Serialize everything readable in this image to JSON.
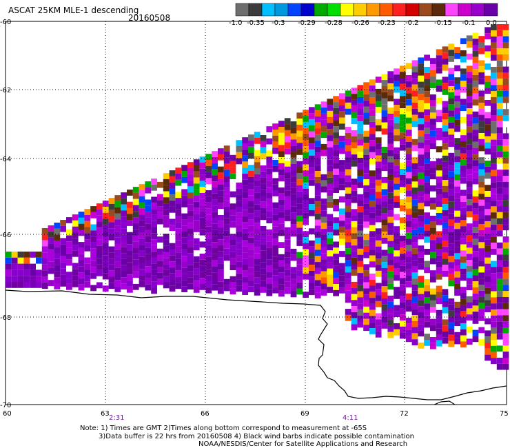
{
  "title": "ASCAT 25KM MLE-1 descending",
  "date": "20160508",
  "colorbar": {
    "labels": [
      "-1.0",
      "-0.35",
      "-0.3",
      "-0.29",
      "-0.28",
      "-0.26",
      "-0.23",
      "-0.2",
      "-0.15",
      "-0.1",
      "0.0"
    ],
    "colors": [
      "#6e6e6e",
      "#3c3c3c",
      "#00bfff",
      "#0099dd",
      "#0044ff",
      "#0000cc",
      "#00aa00",
      "#00dd00",
      "#ffff00",
      "#ffcc00",
      "#ff9900",
      "#ff5a00",
      "#ff2020",
      "#d40000",
      "#9b4a1e",
      "#5a2a0a",
      "#ff44ff",
      "#cc00cc",
      "#9900cc",
      "#6a00a8"
    ]
  },
  "axes": {
    "lat_labels": [
      "-60",
      "-62",
      "-64",
      "-66",
      "-68",
      "-70"
    ],
    "lon_labels": [
      "60",
      "63",
      "66",
      "69",
      "72",
      "75"
    ]
  },
  "times": [
    "2:31",
    "4:11"
  ],
  "notes": [
    "Note: 1) Times are GMT 2)Times along bottom correspond to measurement at -65S",
    "3)Data buffer is 22 hrs from 20160508 4) Black wind barbs indicate possible contamination",
    "NOAA/NESDIS/Center for Satellite Applications and Research"
  ]
}
